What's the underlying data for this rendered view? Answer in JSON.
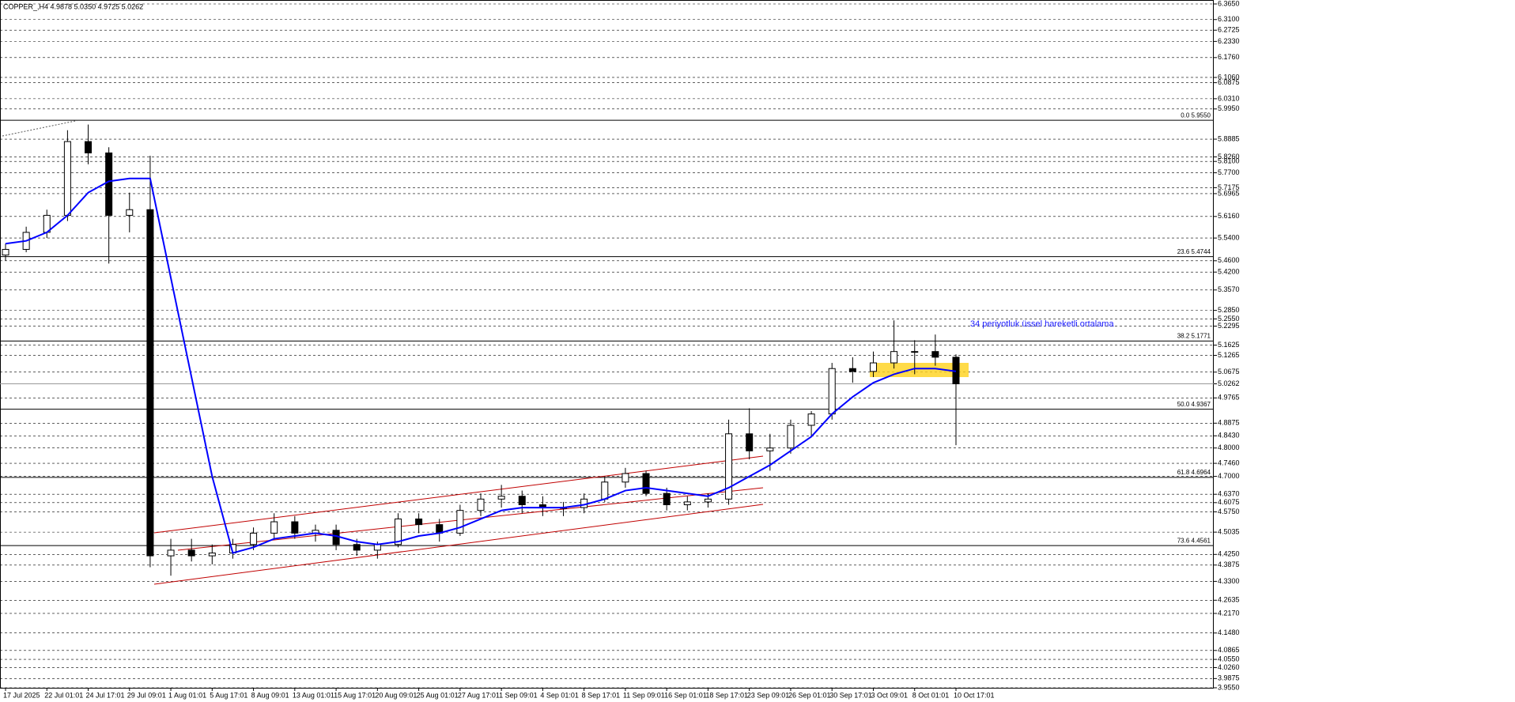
{
  "chart_data": {
    "type": "candlestick",
    "title": "COPPER_,H4  4.9878 5.0350 4.9725 5.0262",
    "annotation": "34 periyotluk üssel hareketli ortalama",
    "categories": [
      "17 Jul 2025",
      null,
      "22 Jul 01:01",
      null,
      "24 Jul 17:01",
      null,
      "29 Jul 09:01",
      null,
      "1 Aug 01:01",
      null,
      "5 Aug 17:01",
      null,
      "8 Aug 09:01",
      null,
      "13 Aug 01:01",
      null,
      "15 Aug 17:01",
      null,
      "20 Aug 09:01",
      null,
      "25 Aug 01:01",
      null,
      "27 Aug 17:01",
      null,
      "1 Sep 09:01",
      null,
      "4 Sep 01:01",
      null,
      "8 Sep 17:01",
      null,
      "11 Sep 09:01",
      null,
      "16 Sep 01:01",
      null,
      "18 Sep 17:01",
      null,
      "23 Sep 09:01",
      null,
      "26 Sep 01:01",
      null,
      "30 Sep 17:01",
      null,
      "3 Oct 09:01",
      null,
      "8 Oct 01:01",
      null,
      "10 Oct 17:01"
    ],
    "open": [
      5.48,
      5.5,
      5.56,
      5.62,
      5.88,
      5.84,
      5.62,
      5.64,
      4.42,
      4.44,
      4.42,
      4.43,
      4.46,
      4.5,
      4.54,
      4.5,
      4.51,
      4.46,
      4.44,
      4.46,
      4.55,
      4.53,
      4.5,
      4.58,
      4.62,
      4.63,
      4.6,
      4.59,
      4.59,
      4.62,
      4.68,
      4.71,
      4.64,
      4.6,
      4.61,
      4.62,
      4.85,
      4.79,
      4.8,
      4.88,
      4.92,
      5.08,
      5.07,
      5.1,
      5.14,
      5.14,
      5.12
    ],
    "high": [
      5.52,
      5.58,
      5.64,
      5.92,
      5.94,
      5.86,
      5.7,
      5.83,
      4.48,
      4.48,
      4.46,
      4.48,
      4.52,
      4.57,
      4.56,
      4.53,
      4.53,
      4.48,
      4.47,
      4.57,
      4.57,
      4.55,
      4.6,
      4.64,
      4.67,
      4.65,
      4.63,
      4.61,
      4.64,
      4.7,
      4.73,
      4.72,
      4.66,
      4.63,
      4.64,
      4.9,
      4.94,
      4.85,
      4.9,
      4.93,
      5.1,
      5.12,
      5.14,
      5.25,
      5.18,
      5.2,
      5.13
    ],
    "low": [
      5.46,
      5.49,
      5.54,
      5.6,
      5.8,
      5.45,
      5.56,
      4.38,
      4.35,
      4.4,
      4.39,
      4.41,
      4.44,
      4.48,
      4.48,
      4.47,
      4.44,
      4.42,
      4.41,
      4.45,
      4.5,
      4.47,
      4.49,
      4.56,
      4.59,
      4.57,
      4.56,
      4.56,
      4.57,
      4.61,
      4.66,
      4.63,
      4.58,
      4.58,
      4.59,
      4.6,
      4.76,
      4.72,
      4.78,
      4.84,
      4.9,
      5.03,
      5.05,
      5.08,
      5.06,
      5.09,
      4.81
    ],
    "close": [
      5.5,
      5.56,
      5.62,
      5.88,
      5.84,
      5.62,
      5.64,
      4.42,
      4.44,
      4.42,
      4.43,
      4.46,
      4.5,
      4.54,
      4.5,
      4.51,
      4.46,
      4.44,
      4.46,
      4.55,
      4.53,
      4.5,
      4.58,
      4.62,
      4.63,
      4.6,
      4.59,
      4.59,
      4.62,
      4.68,
      4.71,
      4.64,
      4.6,
      4.61,
      4.62,
      4.85,
      4.79,
      4.8,
      4.88,
      4.92,
      5.08,
      5.07,
      5.1,
      5.14,
      5.14,
      5.12,
      5.0262
    ],
    "color": "#000000",
    "ema": {
      "color": "#0000ff",
      "values": [
        5.52,
        5.53,
        5.56,
        5.62,
        5.7,
        5.74,
        5.75,
        5.75,
        5.4,
        5.05,
        4.7,
        4.43,
        4.45,
        4.48,
        4.49,
        4.5,
        4.49,
        4.47,
        4.46,
        4.47,
        4.49,
        4.5,
        4.52,
        4.55,
        4.58,
        4.59,
        4.59,
        4.59,
        4.6,
        4.62,
        4.65,
        4.66,
        4.65,
        4.64,
        4.63,
        4.66,
        4.7,
        4.74,
        4.79,
        4.84,
        4.92,
        4.98,
        5.03,
        5.06,
        5.08,
        5.08,
        5.07
      ]
    },
    "fib_levels": [
      {
        "value": 5.955,
        "label": "0.0 5.9550"
      },
      {
        "value": 5.4744,
        "label": "23.6 5.4744"
      },
      {
        "value": 5.1771,
        "label": "38.2 5.1771"
      },
      {
        "value": 4.9367,
        "label": "50.0 4.9367"
      },
      {
        "value": 4.6964,
        "label": "61.8 4.6964"
      },
      {
        "value": 4.4561,
        "label": "73.6 4.4561"
      }
    ],
    "ylim": [
      3.955,
      6.365
    ],
    "yticks": [
      {
        "value": 6.365,
        "label": "6.3650"
      },
      {
        "value": 6.31,
        "label": "6.3100"
      },
      {
        "value": 6.2725,
        "label": "6.2725"
      },
      {
        "value": 6.233,
        "label": "6.2330"
      },
      {
        "value": 6.176,
        "label": "6.1760"
      },
      {
        "value": 6.106,
        "label": "6.1060"
      },
      {
        "value": 6.0875,
        "label": "6.0875"
      },
      {
        "value": 6.031,
        "label": "6.0310"
      },
      {
        "value": 5.995,
        "label": "5.9950"
      },
      {
        "value": 5.8885,
        "label": "5.8885"
      },
      {
        "value": 5.826,
        "label": "5.8260"
      },
      {
        "value": 5.81,
        "label": "5.8100"
      },
      {
        "value": 5.77,
        "label": "5.7700"
      },
      {
        "value": 5.7175,
        "label": "5.7175"
      },
      {
        "value": 5.6965,
        "label": "5.6965"
      },
      {
        "value": 5.616,
        "label": "5.6160"
      },
      {
        "value": 5.54,
        "label": "5.5400"
      },
      {
        "value": 5.46,
        "label": "5.4600"
      },
      {
        "value": 5.42,
        "label": "5.4200"
      },
      {
        "value": 5.357,
        "label": "5.3570"
      },
      {
        "value": 5.285,
        "label": "5.2850"
      },
      {
        "value": 5.255,
        "label": "5.2550"
      },
      {
        "value": 5.2295,
        "label": "5.2295"
      },
      {
        "value": 5.1625,
        "label": "5.1625"
      },
      {
        "value": 5.1265,
        "label": "5.1265"
      },
      {
        "value": 5.0675,
        "label": "5.0675"
      },
      {
        "value": 5.0262,
        "label": "5.0262"
      },
      {
        "value": 4.9765,
        "label": "4.9765"
      },
      {
        "value": 4.8875,
        "label": "4.8875"
      },
      {
        "value": 4.843,
        "label": "4.8430"
      },
      {
        "value": 4.8,
        "label": "4.8000"
      },
      {
        "value": 4.746,
        "label": "4.7460"
      },
      {
        "value": 4.7,
        "label": "4.7000"
      },
      {
        "value": 4.637,
        "label": "4.6370"
      },
      {
        "value": 4.6075,
        "label": "4.6075"
      },
      {
        "value": 4.575,
        "label": "4.5750"
      },
      {
        "value": 4.5035,
        "label": "4.5035"
      },
      {
        "value": 4.425,
        "label": "4.4250"
      },
      {
        "value": 4.3875,
        "label": "4.3875"
      },
      {
        "value": 4.33,
        "label": "4.3300"
      },
      {
        "value": 4.2635,
        "label": "4.2635"
      },
      {
        "value": 4.217,
        "label": "4.2170"
      },
      {
        "value": 4.148,
        "label": "4.1480"
      },
      {
        "value": 4.0865,
        "label": "4.0865"
      },
      {
        "value": 4.055,
        "label": "4.0550"
      },
      {
        "value": 4.026,
        "label": "4.0260"
      },
      {
        "value": 3.9875,
        "label": "3.9875"
      },
      {
        "value": 3.955,
        "label": "3.9550"
      }
    ],
    "grid": true
  }
}
